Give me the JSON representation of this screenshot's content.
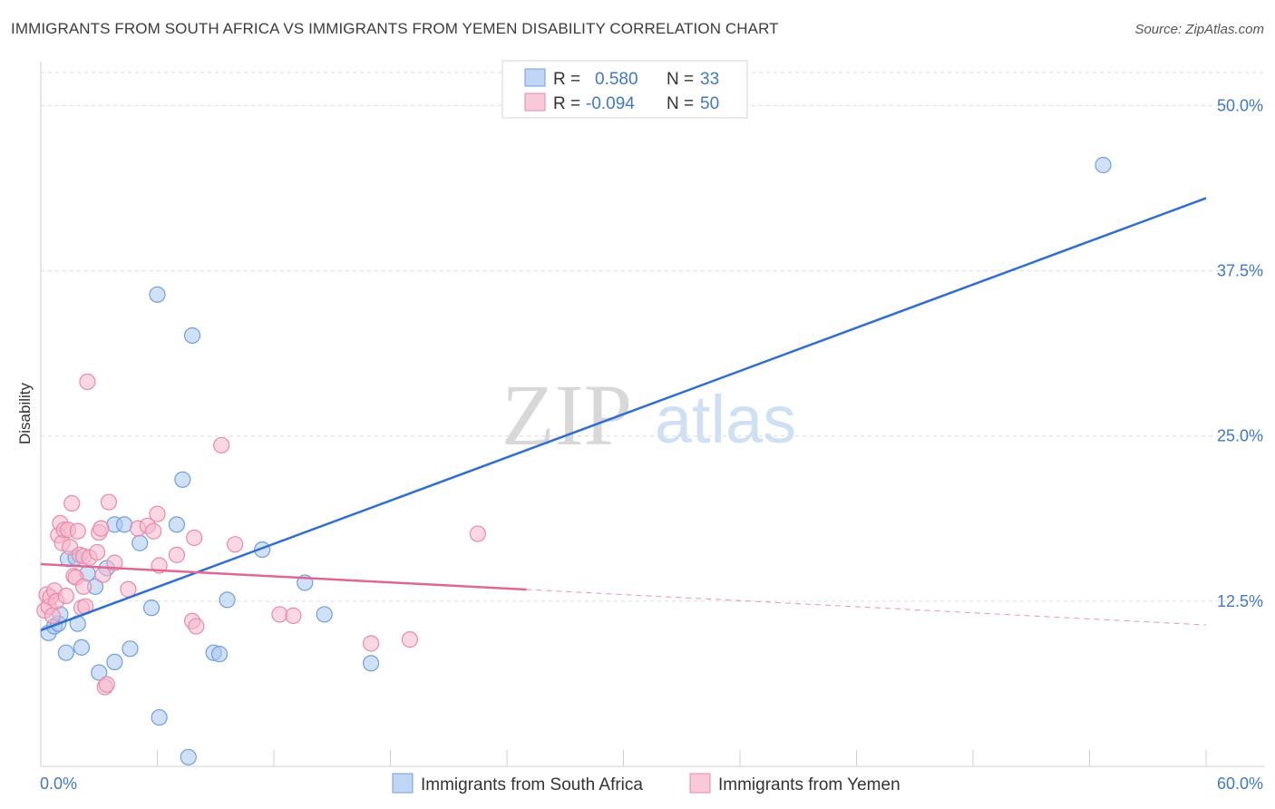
{
  "title": "IMMIGRANTS FROM SOUTH AFRICA VS IMMIGRANTS FROM YEMEN DISABILITY CORRELATION CHART",
  "source": "Source: ZipAtlas.com",
  "watermark": {
    "zip": "ZIP",
    "atlas": "atlas"
  },
  "legend_box": {
    "rows": [
      {
        "r_label": "R =",
        "r_value": "0.580",
        "n_label": "N =",
        "n_value": "33",
        "color": "#a9c8f0",
        "stroke": "#6f9fe0"
      },
      {
        "r_label": "R =",
        "r_value": "-0.094",
        "n_label": "N =",
        "n_value": "50",
        "color": "#f6b8cc",
        "stroke": "#e98aa8"
      }
    ]
  },
  "chart_data": {
    "type": "scatter",
    "title": "IMMIGRANTS FROM SOUTH AFRICA VS IMMIGRANTS FROM YEMEN DISABILITY CORRELATION CHART",
    "xlabel": "",
    "ylabel": "Disability",
    "xlim": [
      0,
      60
    ],
    "ylim": [
      0,
      50
    ],
    "x_tick_labels": [
      "0.0%",
      "60.0%"
    ],
    "y_ticks": [
      12.5,
      25.0,
      37.5,
      50.0
    ],
    "y_tick_labels": [
      "12.5%",
      "25.0%",
      "37.5%",
      "50.0%"
    ],
    "grid": true,
    "legend_position": "top-center",
    "series": [
      {
        "name": "Immigrants from South Africa",
        "color": "#a9c8f0",
        "stroke": "#6f9fe0",
        "line_color": "#2f6fcf",
        "trend": {
          "x0": 0.0,
          "y0": 10.3,
          "x1": 60.0,
          "y1": 43.0,
          "dashed_from": null
        },
        "points": [
          [
            0.4,
            10.1
          ],
          [
            0.7,
            10.6
          ],
          [
            0.9,
            10.8
          ],
          [
            1.0,
            11.5
          ],
          [
            1.3,
            8.6
          ],
          [
            1.4,
            15.7
          ],
          [
            1.8,
            15.8
          ],
          [
            1.9,
            10.8
          ],
          [
            2.1,
            9.0
          ],
          [
            2.4,
            14.6
          ],
          [
            2.8,
            13.6
          ],
          [
            3.0,
            7.1
          ],
          [
            3.4,
            15.0
          ],
          [
            3.8,
            7.9
          ],
          [
            3.8,
            18.3
          ],
          [
            4.3,
            18.3
          ],
          [
            4.6,
            8.9
          ],
          [
            5.1,
            16.9
          ],
          [
            5.7,
            12.0
          ],
          [
            6.0,
            35.7
          ],
          [
            6.1,
            3.7
          ],
          [
            7.0,
            18.3
          ],
          [
            7.3,
            21.7
          ],
          [
            7.6,
            0.7
          ],
          [
            7.8,
            32.6
          ],
          [
            8.9,
            8.6
          ],
          [
            9.2,
            8.5
          ],
          [
            9.6,
            12.6
          ],
          [
            11.4,
            16.4
          ],
          [
            13.6,
            13.9
          ],
          [
            14.6,
            11.5
          ],
          [
            17.0,
            7.8
          ],
          [
            54.7,
            45.5
          ]
        ]
      },
      {
        "name": "Immigrants from Yemen",
        "color": "#f6b8cc",
        "stroke": "#e98aa8",
        "line_color": "#e06694",
        "trend": {
          "x0": 0.0,
          "y0": 15.3,
          "x1": 60.0,
          "y1": 10.7,
          "dashed_from": 25.0
        },
        "points": [
          [
            0.2,
            11.8
          ],
          [
            0.3,
            13.0
          ],
          [
            0.4,
            12.1
          ],
          [
            0.5,
            12.8
          ],
          [
            0.6,
            11.4
          ],
          [
            0.7,
            13.3
          ],
          [
            0.8,
            12.5
          ],
          [
            0.9,
            17.5
          ],
          [
            1.0,
            18.4
          ],
          [
            1.1,
            16.9
          ],
          [
            1.2,
            17.9
          ],
          [
            1.3,
            12.9
          ],
          [
            1.4,
            17.9
          ],
          [
            1.5,
            16.6
          ],
          [
            1.6,
            19.9
          ],
          [
            1.7,
            14.4
          ],
          [
            1.8,
            14.3
          ],
          [
            1.9,
            17.8
          ],
          [
            2.0,
            16.0
          ],
          [
            2.1,
            12.0
          ],
          [
            2.2,
            15.9
          ],
          [
            2.3,
            12.1
          ],
          [
            2.4,
            29.1
          ],
          [
            2.5,
            15.8
          ],
          [
            2.9,
            16.2
          ],
          [
            3.0,
            17.7
          ],
          [
            3.1,
            18.0
          ],
          [
            3.2,
            14.5
          ],
          [
            3.3,
            6.0
          ],
          [
            3.4,
            6.2
          ],
          [
            3.5,
            20.0
          ],
          [
            3.8,
            15.4
          ],
          [
            4.5,
            13.4
          ],
          [
            5.0,
            18.0
          ],
          [
            5.5,
            18.2
          ],
          [
            5.8,
            17.8
          ],
          [
            6.0,
            19.1
          ],
          [
            6.1,
            15.2
          ],
          [
            7.0,
            16.0
          ],
          [
            7.8,
            11.0
          ],
          [
            7.9,
            17.3
          ],
          [
            8.0,
            10.6
          ],
          [
            9.3,
            24.3
          ],
          [
            10.0,
            16.8
          ],
          [
            12.3,
            11.5
          ],
          [
            13.0,
            11.4
          ],
          [
            17.0,
            9.3
          ],
          [
            19.0,
            9.6
          ],
          [
            22.5,
            17.6
          ],
          [
            2.2,
            13.6
          ]
        ]
      }
    ]
  }
}
